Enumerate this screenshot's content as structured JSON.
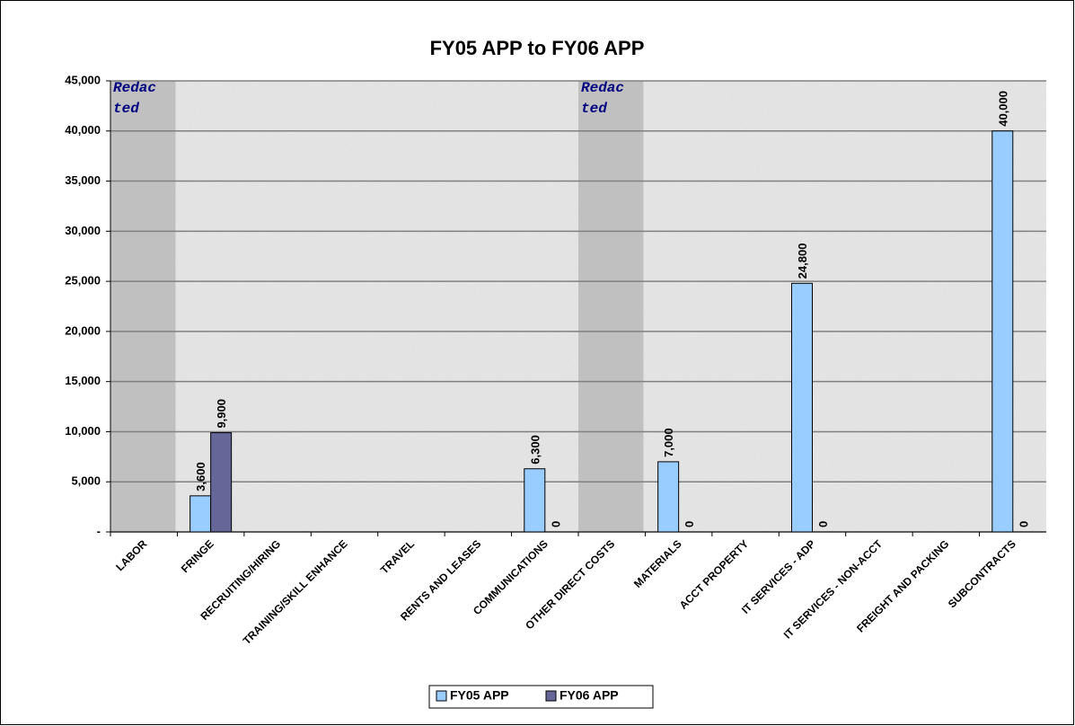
{
  "chart_data": {
    "type": "bar",
    "title": "FY05 APP to FY06 APP",
    "categories": [
      "LABOR",
      "FRINGE",
      "RECRUITING/HIRING",
      "TRAINING/SKILL ENHANCE",
      "TRAVEL",
      "RENTS AND LEASES",
      "COMMUNICATIONS",
      "OTHER DIRECT COSTS",
      "MATERIALS",
      "ACCT PROPERTY",
      "IT SERVICES - ADP",
      "IT SERVICES - NON-ACCT",
      "FREIGHT AND PACKING",
      "SUBCONTRACTS"
    ],
    "series": [
      {
        "name": "FY05 APP",
        "color": "#99ccff",
        "values": [
          null,
          3600,
          null,
          null,
          null,
          null,
          6300,
          null,
          7000,
          null,
          24800,
          null,
          null,
          40000
        ],
        "value_labels": [
          null,
          "3,600",
          null,
          null,
          null,
          null,
          "6,300",
          null,
          "7,000",
          null,
          "24,800",
          null,
          null,
          "40,000"
        ]
      },
      {
        "name": "FY06 APP",
        "color": "#666699",
        "values": [
          null,
          9900,
          null,
          null,
          null,
          null,
          0,
          null,
          0,
          null,
          0,
          null,
          null,
          0
        ],
        "value_labels": [
          null,
          "9,900",
          null,
          null,
          null,
          null,
          "0",
          null,
          "0",
          null,
          "0",
          null,
          null,
          "0"
        ]
      }
    ],
    "ylim": [
      0,
      45000
    ],
    "yticks": [
      {
        "value": 0,
        "label": "-"
      },
      {
        "value": 5000,
        "label": "5,000"
      },
      {
        "value": 10000,
        "label": "10,000"
      },
      {
        "value": 15000,
        "label": "15,000"
      },
      {
        "value": 20000,
        "label": "20,000"
      },
      {
        "value": 25000,
        "label": "25,000"
      },
      {
        "value": 30000,
        "label": "30,000"
      },
      {
        "value": 35000,
        "label": "35,000"
      },
      {
        "value": 40000,
        "label": "40,000"
      },
      {
        "value": 45000,
        "label": "45,000"
      }
    ],
    "grid": true,
    "legend": "bottom",
    "annotations": [
      {
        "lines": [
          "Redac",
          "ted"
        ]
      },
      {
        "lines": [
          "Redac",
          "ted"
        ]
      }
    ]
  }
}
